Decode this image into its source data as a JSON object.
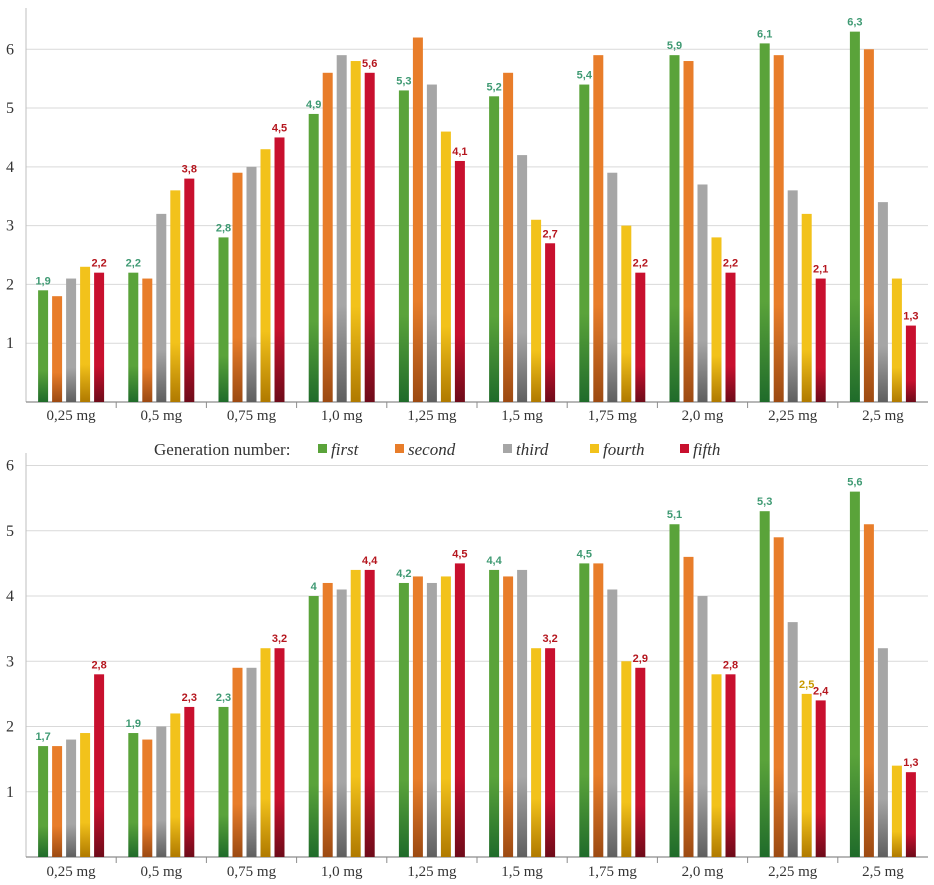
{
  "legend": {
    "title": "Generation number:",
    "items": [
      {
        "label": "first",
        "color": "#5aa33a"
      },
      {
        "label": "second",
        "color": "#e87d2a"
      },
      {
        "label": "third",
        "color": "#a6a6a6"
      },
      {
        "label": "fourth",
        "color": "#f2c21b"
      },
      {
        "label": "fifth",
        "color": "#c8102e"
      }
    ]
  },
  "chart_data": [
    {
      "type": "bar",
      "title": "",
      "categories": [
        "0,25 mg",
        "0,5 mg",
        "0,75 mg",
        "1,0 mg",
        "1,25 mg",
        "1,5 mg",
        "1,75 mg",
        "2,0 mg",
        "2,25 mg",
        "2,5 mg"
      ],
      "ylim": [
        0,
        6.6
      ],
      "yticks": [
        1,
        2,
        3,
        4,
        5,
        6
      ],
      "grid": true,
      "series": [
        {
          "name": "first",
          "values": [
            1.9,
            2.2,
            2.8,
            4.9,
            5.3,
            5.2,
            5.4,
            5.9,
            6.1,
            6.3
          ]
        },
        {
          "name": "second",
          "values": [
            1.8,
            2.1,
            3.9,
            5.6,
            6.2,
            5.6,
            5.9,
            5.8,
            5.9,
            6.0
          ]
        },
        {
          "name": "third",
          "values": [
            2.1,
            3.2,
            4.0,
            5.9,
            5.4,
            4.2,
            3.9,
            3.7,
            3.6,
            3.4
          ]
        },
        {
          "name": "fourth",
          "values": [
            2.3,
            3.6,
            4.3,
            5.8,
            4.6,
            3.1,
            3.0,
            2.8,
            3.2,
            2.1
          ]
        },
        {
          "name": "fifth",
          "values": [
            2.2,
            3.8,
            4.5,
            5.6,
            4.1,
            2.7,
            2.2,
            2.2,
            2.1,
            1.3
          ]
        }
      ],
      "data_labels": [
        {
          "category": 0,
          "series": 0,
          "text": "1,9"
        },
        {
          "category": 0,
          "series": 4,
          "text": "2,2"
        },
        {
          "category": 1,
          "series": 0,
          "text": "2,2"
        },
        {
          "category": 1,
          "series": 4,
          "text": "3,8"
        },
        {
          "category": 2,
          "series": 0,
          "text": "2,8"
        },
        {
          "category": 2,
          "series": 4,
          "text": "4,5"
        },
        {
          "category": 3,
          "series": 0,
          "text": "4,9"
        },
        {
          "category": 3,
          "series": 4,
          "text": "5,6"
        },
        {
          "category": 4,
          "series": 0,
          "text": "5,3"
        },
        {
          "category": 4,
          "series": 4,
          "text": "4,1"
        },
        {
          "category": 5,
          "series": 0,
          "text": "5,2"
        },
        {
          "category": 5,
          "series": 4,
          "text": "2,7"
        },
        {
          "category": 6,
          "series": 0,
          "text": "5,4"
        },
        {
          "category": 6,
          "series": 4,
          "text": "2,2"
        },
        {
          "category": 7,
          "series": 0,
          "text": "5,9"
        },
        {
          "category": 7,
          "series": 4,
          "text": "2,2"
        },
        {
          "category": 8,
          "series": 0,
          "text": "6,1"
        },
        {
          "category": 8,
          "series": 4,
          "text": "2,1"
        },
        {
          "category": 9,
          "series": 0,
          "text": "6,3"
        },
        {
          "category": 9,
          "series": 4,
          "text": "1,3"
        }
      ]
    },
    {
      "type": "bar",
      "title": "",
      "categories": [
        "0,25 mg",
        "0,5 mg",
        "0,75 mg",
        "1,0 mg",
        "1,25 mg",
        "1,5 mg",
        "1,75 mg",
        "2,0 mg",
        "2,25 mg",
        "2,5 mg"
      ],
      "ylim": [
        0,
        6.1
      ],
      "yticks": [
        1,
        2,
        3,
        4,
        5,
        6
      ],
      "grid": true,
      "series": [
        {
          "name": "first",
          "values": [
            1.7,
            1.9,
            2.3,
            4.0,
            4.2,
            4.4,
            4.5,
            5.1,
            5.3,
            5.6
          ]
        },
        {
          "name": "second",
          "values": [
            1.7,
            1.8,
            2.9,
            4.2,
            4.3,
            4.3,
            4.5,
            4.6,
            4.9,
            5.1
          ]
        },
        {
          "name": "third",
          "values": [
            1.8,
            2.0,
            2.9,
            4.1,
            4.2,
            4.4,
            4.1,
            4.0,
            3.6,
            3.2
          ]
        },
        {
          "name": "fourth",
          "values": [
            1.9,
            2.2,
            3.2,
            4.4,
            4.3,
            3.2,
            3.0,
            2.8,
            2.5,
            1.4
          ]
        },
        {
          "name": "fifth",
          "values": [
            2.8,
            2.3,
            3.2,
            4.4,
            4.5,
            3.2,
            2.9,
            2.8,
            2.4,
            1.3
          ]
        }
      ],
      "data_labels": [
        {
          "category": 0,
          "series": 0,
          "text": "1,7"
        },
        {
          "category": 0,
          "series": 4,
          "text": "2,8"
        },
        {
          "category": 1,
          "series": 0,
          "text": "1,9"
        },
        {
          "category": 1,
          "series": 4,
          "text": "2,3"
        },
        {
          "category": 2,
          "series": 0,
          "text": "2,3"
        },
        {
          "category": 2,
          "series": 4,
          "text": "3,2"
        },
        {
          "category": 3,
          "series": 0,
          "text": "4"
        },
        {
          "category": 3,
          "series": 4,
          "text": "4,4"
        },
        {
          "category": 4,
          "series": 0,
          "text": "4,2"
        },
        {
          "category": 4,
          "series": 4,
          "text": "4,5"
        },
        {
          "category": 5,
          "series": 0,
          "text": "4,4"
        },
        {
          "category": 5,
          "series": 4,
          "text": "3,2"
        },
        {
          "category": 6,
          "series": 0,
          "text": "4,5"
        },
        {
          "category": 6,
          "series": 4,
          "text": "2,9"
        },
        {
          "category": 7,
          "series": 0,
          "text": "5,1"
        },
        {
          "category": 7,
          "series": 4,
          "text": "2,8"
        },
        {
          "category": 8,
          "series": 0,
          "text": "5,3"
        },
        {
          "category": 8,
          "series": 3,
          "text": "2,5"
        },
        {
          "category": 8,
          "series": 4,
          "text": "2,4"
        },
        {
          "category": 9,
          "series": 0,
          "text": "5,6"
        },
        {
          "category": 9,
          "series": 4,
          "text": "1,3"
        }
      ]
    }
  ]
}
